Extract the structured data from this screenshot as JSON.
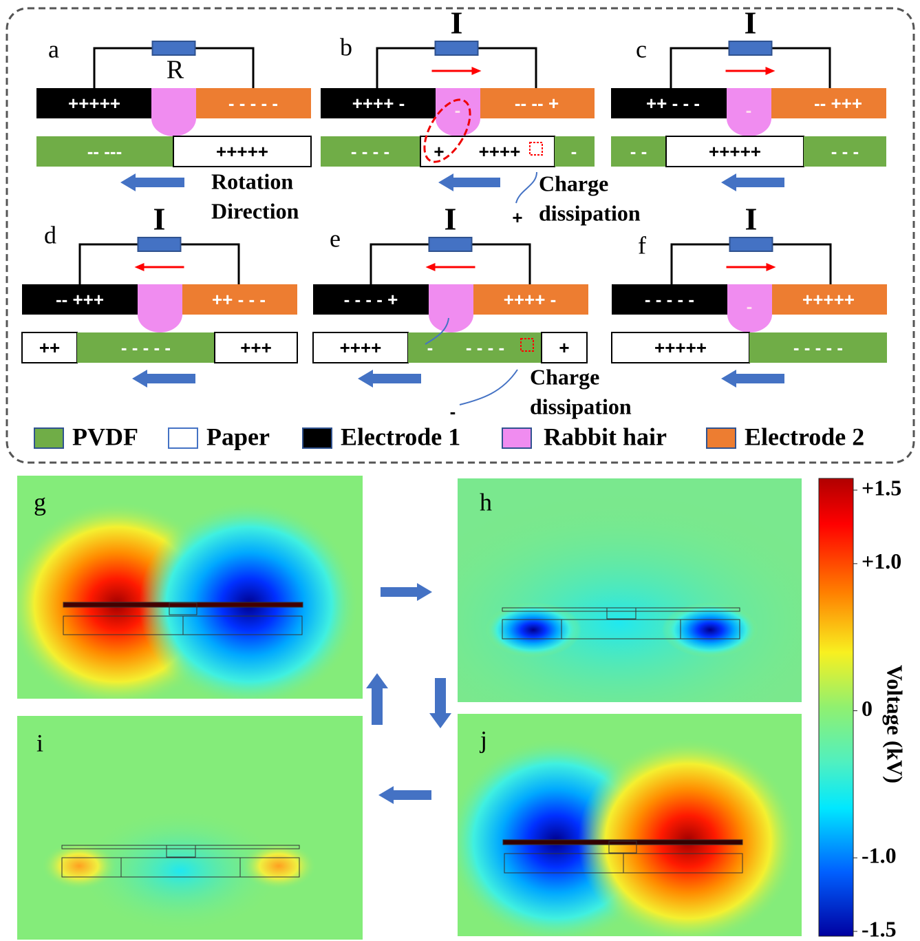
{
  "panels": [
    {
      "label": "a",
      "circuit": "R",
      "top": [
        "+++++",
        "- - - - -"
      ],
      "bottom": [
        "-- ---",
        "+++++"
      ]
    },
    {
      "label": "b",
      "circuit": "I",
      "top": [
        "++++ -",
        "-",
        "-- -- +"
      ],
      "bottom": [
        "- - - -",
        "+",
        "++++",
        "-"
      ]
    },
    {
      "label": "c",
      "circuit": "I",
      "top": [
        "++ - - -",
        "-",
        "-- +++"
      ],
      "bottom": [
        "- -",
        "+++++",
        "- - -"
      ]
    },
    {
      "label": "d",
      "circuit": "I",
      "top": [
        "-- +++",
        "++ - - -"
      ],
      "bottom": [
        "++",
        "- - - - -",
        "+++"
      ]
    },
    {
      "label": "e",
      "circuit": "I",
      "top": [
        "- - - - +",
        "++++ -"
      ],
      "bottom": [
        "++++",
        "-",
        "- - - -",
        "+"
      ]
    },
    {
      "label": "f",
      "circuit": "I",
      "top": [
        "- - - - -",
        "-",
        "+++++"
      ],
      "bottom": [
        "+++++",
        "- - - - -"
      ]
    }
  ],
  "rotation_direction": [
    "Rotation",
    "Direction"
  ],
  "charge_dissipation": [
    {
      "lines": [
        "Charge",
        "dissipation"
      ],
      "sign": "+"
    },
    {
      "lines": [
        "Charge",
        "dissipation"
      ],
      "sign": "-"
    }
  ],
  "legend": [
    "PVDF",
    "Paper",
    "Electrode 1",
    "Rabbit hair",
    "Electrode 2"
  ],
  "maps": [
    "g",
    "h",
    "i",
    "j"
  ],
  "colorbar": {
    "title": "Voltage (kV)",
    "ticks": [
      {
        "value": 1.5,
        "label": "+1.5"
      },
      {
        "value": 1,
        "label": "+1.0"
      },
      0,
      {
        "value": -1,
        "label": "-1.0"
      },
      {
        "value": -1.5,
        "label": "-1.5"
      }
    ]
  }
}
